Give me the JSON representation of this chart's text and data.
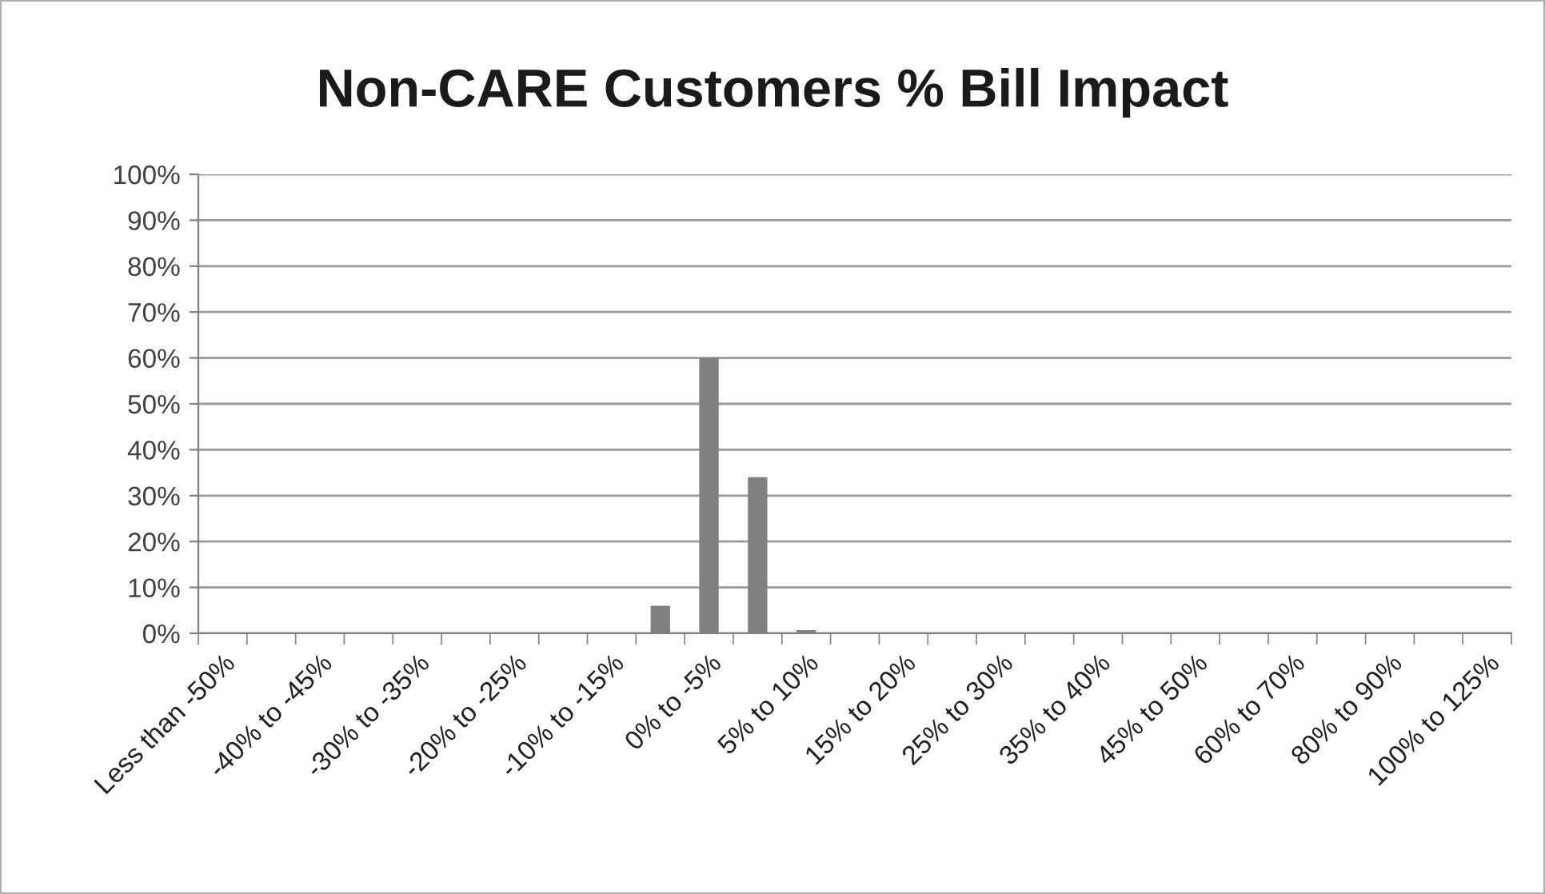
{
  "chart_data": {
    "type": "bar",
    "title": "Non-CARE Customers % Bill Impact",
    "categories": [
      "Less than -50%",
      null,
      "-40% to -45%",
      null,
      "-30% to -35%",
      null,
      "-20% to -25%",
      null,
      "-10% to -15%",
      null,
      "0% to -5%",
      null,
      "5% to 10%",
      null,
      "15% to 20%",
      null,
      "25% to 30%",
      null,
      "35% to 40%",
      null,
      "45% to 50%",
      null,
      "60% to 70%",
      null,
      "80% to 90%",
      null,
      "100% to 125%"
    ],
    "values": [
      0,
      0,
      0,
      0,
      0,
      0,
      0,
      0,
      0,
      6,
      60,
      34,
      0.7,
      0,
      0,
      0,
      0,
      0,
      0,
      0,
      0,
      0,
      0,
      0,
      0,
      0,
      0
    ],
    "color": "#808080",
    "ylim": [
      0,
      100
    ],
    "yticks": [
      {
        "value": 0,
        "label": "0%"
      },
      {
        "value": 10,
        "label": "10%"
      },
      {
        "value": 20,
        "label": "20%"
      },
      {
        "value": 30,
        "label": "30%"
      },
      {
        "value": 40,
        "label": "40%"
      },
      {
        "value": 50,
        "label": "50%"
      },
      {
        "value": 60,
        "label": "60%"
      },
      {
        "value": 70,
        "label": "70%"
      },
      {
        "value": 80,
        "label": "80%"
      },
      {
        "value": 90,
        "label": "90%"
      },
      {
        "value": 100,
        "label": "100%"
      }
    ],
    "grid": "y"
  }
}
